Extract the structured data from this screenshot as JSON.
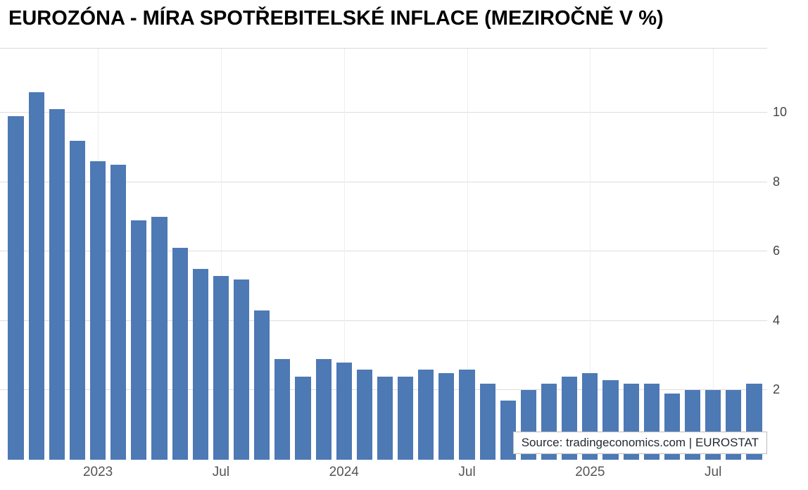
{
  "title": "EUROZÓNA - MÍRA SPOTŘEBITELSKÉ INFLACE (MEZIROČNĚ V %)",
  "source": "Source: tradingeconomics.com | EUROSTAT",
  "chart_data": {
    "type": "bar",
    "title": "EUROZÓNA - MÍRA SPOTŘEBITELSKÉ INFLACE (MEZIROČNĚ V %)",
    "ylabel": "",
    "xlabel": "",
    "categories": [
      "2022-09",
      "2022-10",
      "2022-11",
      "2022-12",
      "2023-01",
      "2023-02",
      "2023-03",
      "2023-04",
      "2023-05",
      "2023-06",
      "2023-07",
      "2023-08",
      "2023-09",
      "2023-10",
      "2023-11",
      "2023-12",
      "2024-01",
      "2024-02",
      "2024-03",
      "2024-04",
      "2024-05",
      "2024-06",
      "2024-07",
      "2024-08",
      "2024-09",
      "2024-10",
      "2024-11",
      "2024-12",
      "2025-01",
      "2025-02",
      "2025-03",
      "2025-04",
      "2025-05",
      "2025-06",
      "2025-07",
      "2025-08",
      "2025-09"
    ],
    "values": [
      9.9,
      10.6,
      10.1,
      9.2,
      8.6,
      8.5,
      6.9,
      7.0,
      6.1,
      5.5,
      5.3,
      5.2,
      4.3,
      2.9,
      2.4,
      2.9,
      2.8,
      2.6,
      2.4,
      2.4,
      2.6,
      2.5,
      2.6,
      2.2,
      1.7,
      2.0,
      2.2,
      2.4,
      2.5,
      2.3,
      2.2,
      2.2,
      1.9,
      2.0,
      2.0,
      2.0,
      2.2
    ],
    "x_tick_labels": [
      {
        "index": 4,
        "label": "2023"
      },
      {
        "index": 10,
        "label": "Jul"
      },
      {
        "index": 16,
        "label": "2024"
      },
      {
        "index": 22,
        "label": "Jul"
      },
      {
        "index": 28,
        "label": "2025"
      },
      {
        "index": 34,
        "label": "Jul"
      }
    ],
    "y_ticks": [
      2,
      4,
      6,
      8,
      10
    ],
    "ylim": [
      0,
      11.85
    ],
    "bar_color": "#4d79b5",
    "grid_color": "#dddddd",
    "grid": "on",
    "legend": "none"
  }
}
